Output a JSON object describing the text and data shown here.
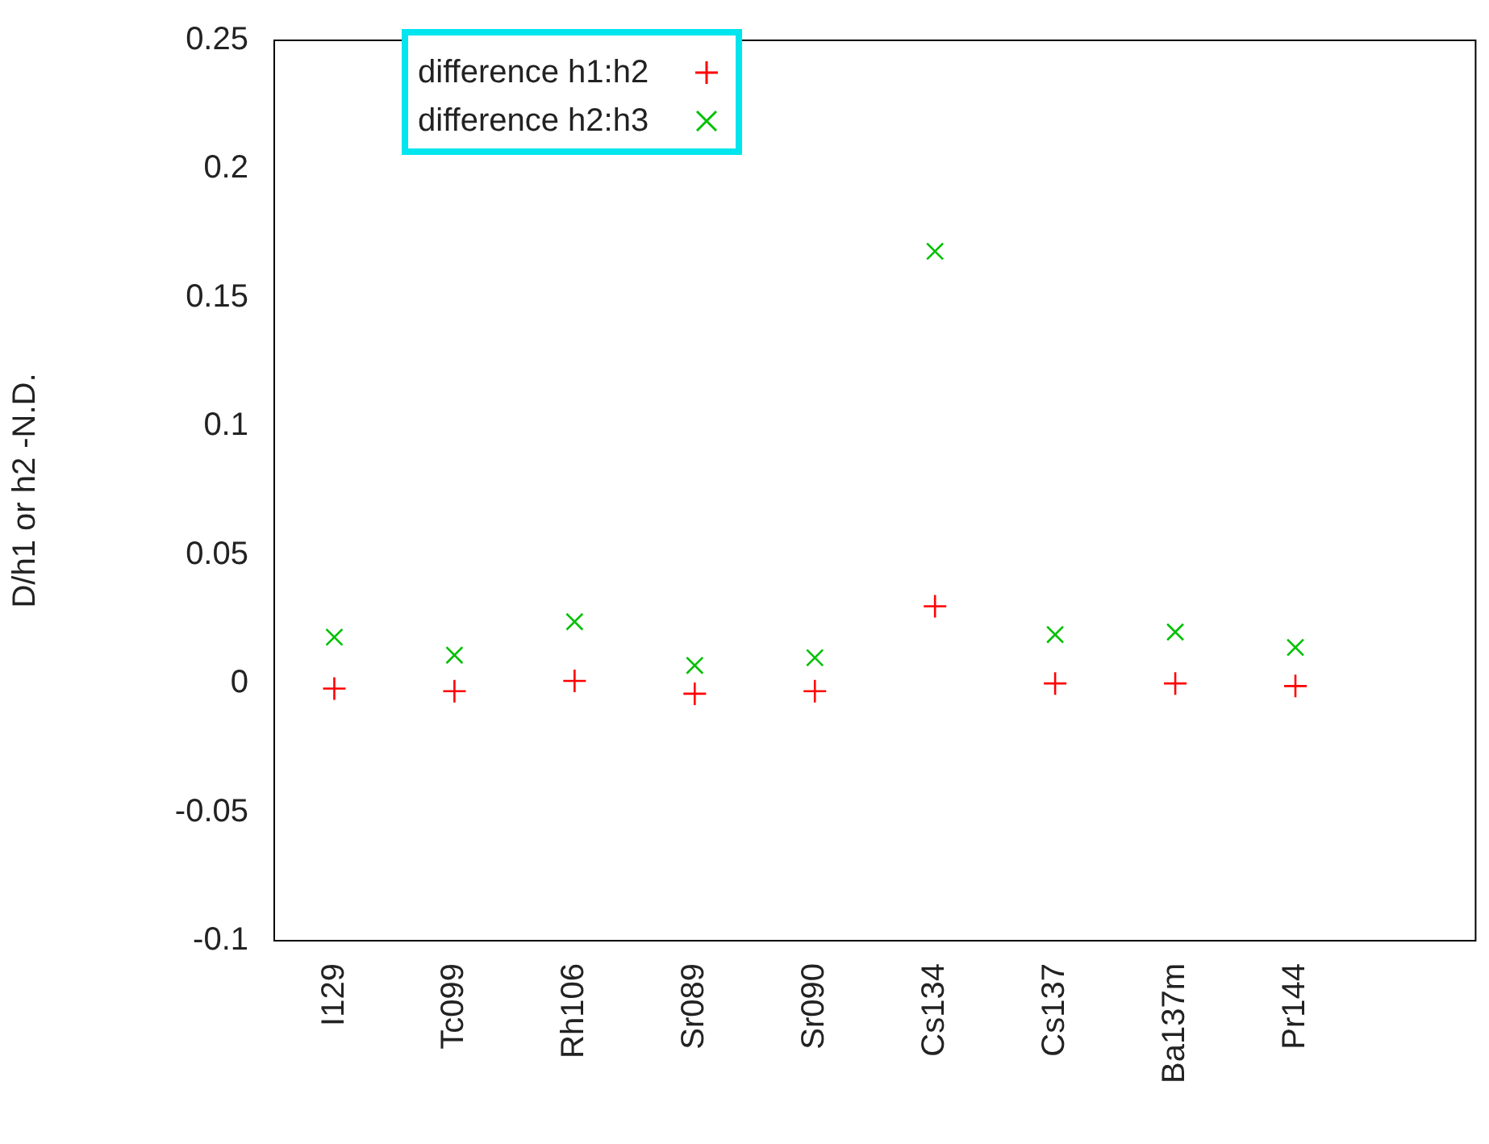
{
  "chart_data": {
    "type": "scatter",
    "ylabel": "D/h1 or h2 -N.D.",
    "categories": [
      "I129",
      "Tc099",
      "Rh106",
      "Sr089",
      "Sr090",
      "Cs134",
      "Cs137",
      "Ba137m",
      "Pr144",
      null
    ],
    "series": [
      {
        "name": "difference h1:h2",
        "color": "#ff0000",
        "marker": "plus",
        "values": [
          -0.002,
          -0.003,
          0.001,
          -0.004,
          -0.003,
          0.03,
          0,
          0,
          -0.001,
          null
        ]
      },
      {
        "name": "difference h2:h3",
        "color": "#00c000",
        "marker": "cross",
        "values": [
          0.018,
          0.011,
          0.024,
          0.007,
          0.01,
          0.168,
          0.019,
          0.02,
          0.014,
          null
        ]
      }
    ],
    "ylim": [
      -0.1,
      0.25
    ],
    "yticks": [
      -0.1,
      -0.05,
      0,
      0.05,
      0.1,
      0.15,
      0.2,
      0.25
    ],
    "grid": false,
    "legend": "top left"
  }
}
